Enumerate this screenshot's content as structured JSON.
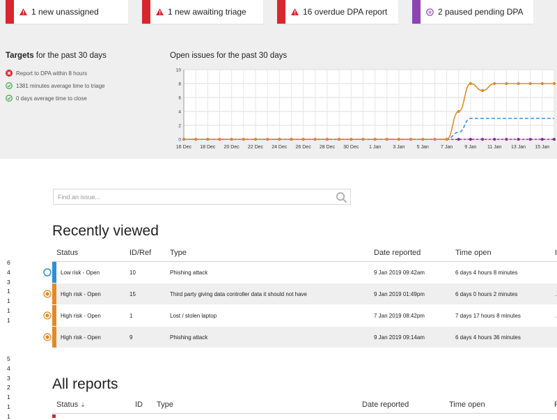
{
  "alerts": [
    {
      "text": "1 new unassigned",
      "color": "#d9262e",
      "icon": "warning-icon"
    },
    {
      "text": "1 new awaiting triage",
      "color": "#d9262e",
      "icon": "warning-icon"
    },
    {
      "text": "16 overdue DPA report",
      "color": "#d9262e",
      "icon": "warning-icon"
    },
    {
      "text": "2 paused pending DPA",
      "color": "#8e44ad",
      "icon": "pause-icon"
    }
  ],
  "targets": {
    "title_bold": "Targets",
    "title_rest": " for the past 30 days",
    "items": [
      {
        "text": "Report to DPA within 8 hours",
        "status": "fail",
        "icon": "cross-circle-icon"
      },
      {
        "text": "1381 minutes average time to triage",
        "status": "ok",
        "icon": "check-circle-icon"
      },
      {
        "text": "0 days average time to close",
        "status": "ok",
        "icon": "check-circle-icon"
      }
    ]
  },
  "chart_title": "Open issues for the past 30 days",
  "chart_data": {
    "type": "line",
    "x": [
      "16 Dec",
      "17 Dec",
      "18 Dec",
      "19 Dec",
      "20 Dec",
      "21 Dec",
      "22 Dec",
      "23 Dec",
      "24 Dec",
      "25 Dec",
      "26 Dec",
      "27 Dec",
      "28 Dec",
      "29 Dec",
      "30 Dec",
      "31 Dec",
      "1 Jan",
      "2 Jan",
      "3 Jan",
      "4 Jan",
      "5 Jan",
      "6 Jan",
      "7 Jan",
      "8 Jan",
      "9 Jan",
      "10 Jan",
      "11 Jan",
      "12 Jan",
      "13 Jan",
      "14 Jan",
      "15 Jan",
      "16 Jan"
    ],
    "xticks": [
      "16 Dec",
      "18 Dec",
      "20 Dec",
      "22 Dec",
      "24 Dec",
      "26 Dec",
      "28 Dec",
      "30 Dec",
      "1 Jan",
      "3 Jan",
      "5 Jan",
      "7 Jan",
      "9 Jan",
      "11 Jan",
      "13 Jan",
      "15 Jan"
    ],
    "yticks": [
      0,
      2,
      4,
      6,
      8,
      10
    ],
    "ylim": [
      0,
      10
    ],
    "grid": true,
    "series": [
      {
        "color": "#e08a2b",
        "style": "solid",
        "markers": true,
        "values": [
          0,
          0,
          0,
          0,
          0,
          0,
          0,
          0,
          0,
          0,
          0,
          0,
          0,
          0,
          0,
          0,
          0,
          0,
          0,
          0,
          0,
          0,
          0,
          4,
          8,
          7,
          8,
          8,
          8,
          8,
          8,
          8
        ]
      },
      {
        "color": "#3b8fd9",
        "style": "dashed",
        "markers": false,
        "values": [
          0,
          0,
          0,
          0,
          0,
          0,
          0,
          0,
          0,
          0,
          0,
          0,
          0,
          0,
          0,
          0,
          0,
          0,
          0,
          0,
          0,
          0,
          0,
          1,
          3,
          3,
          3,
          3,
          3,
          3,
          3,
          3
        ]
      },
      {
        "color": "#8e2b8e",
        "style": "dashed",
        "markers": true,
        "values": [
          0,
          0,
          0,
          0,
          0,
          0,
          0,
          0,
          0,
          0,
          0,
          0,
          0,
          0,
          0,
          0,
          0,
          0,
          0,
          0,
          0,
          0,
          0,
          0,
          0,
          0,
          0,
          0,
          0,
          0,
          0,
          0
        ]
      }
    ]
  },
  "search": {
    "placeholder": "Find an issue..."
  },
  "recent": {
    "title": "Recently viewed",
    "headers": {
      "status": "Status",
      "id": "ID/Ref",
      "type": "Type",
      "date": "Date reported",
      "time": "Time open"
    },
    "rows": [
      {
        "status": "Low risk - Open",
        "id": "10",
        "type": "Phishing attack",
        "date": "9 Jan 2019 09:42am",
        "time": "6 days 4 hours 8 minutes",
        "color": "#2e8fd1",
        "icon": "low-risk-icon",
        "tail": ""
      },
      {
        "status": "High risk - Open",
        "id": "15",
        "type": "Third party giving data controller data it should not have",
        "date": "9 Jan 2019 01:49pm",
        "time": "6 days 0 hours 2 minutes",
        "color": "#e08a2b",
        "icon": "high-risk-icon",
        "tail": "."
      },
      {
        "status": "High risk - Open",
        "id": "1",
        "type": "Lost / stolen laptop",
        "date": "7 Jan 2019 08:42pm",
        "time": "7 days 17 hours 8 minutes",
        "color": "#e08a2b",
        "icon": "high-risk-icon",
        "tail": "."
      },
      {
        "status": "High risk - Open",
        "id": "9",
        "type": "Phishing attack",
        "date": "9 Jan 2019 09:14am",
        "time": "6 days 4 hours 36 minutes",
        "color": "#e08a2b",
        "icon": "high-risk-icon",
        "tail": ""
      }
    ]
  },
  "left_numbers_a": [
    "6",
    "4",
    "3",
    "1",
    "1",
    "1",
    "1"
  ],
  "left_numbers_b": [
    "5",
    "4",
    "3",
    "2",
    "1",
    "1",
    "1"
  ],
  "all": {
    "title": "All reports",
    "headers": {
      "status": "Status",
      "sort_icon": "⇣",
      "id": "ID",
      "type": "Type",
      "date": "Date reported",
      "time": "Time open",
      "tail": "F"
    }
  },
  "recent_header_tail": "I"
}
